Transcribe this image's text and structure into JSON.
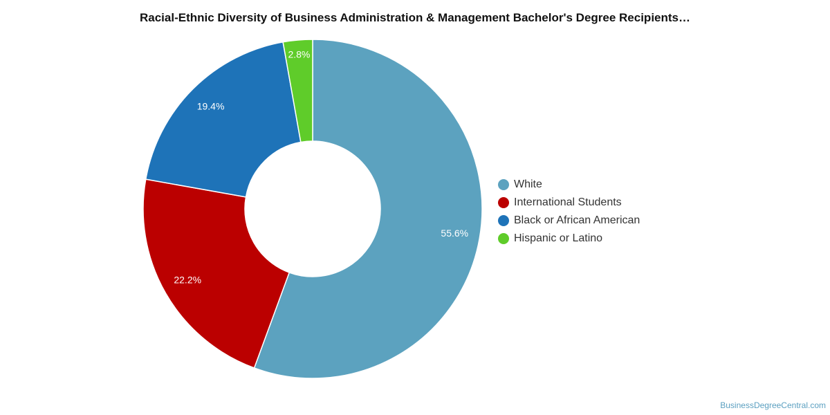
{
  "chart_data": {
    "type": "pie",
    "title": "Racial-Ethnic Diversity of Business Administration & Management Bachelor's Degree Recipients…",
    "categories": [
      "White",
      "International Students",
      "Black or African American",
      "Hispanic or Latino"
    ],
    "values": [
      55.6,
      22.2,
      19.4,
      2.8
    ],
    "value_labels": [
      "55.6%",
      "22.2%",
      "19.4%",
      "2.8%"
    ],
    "colors": [
      "#5ca2bf",
      "#bb0000",
      "#1e73b8",
      "#5fcc2a"
    ],
    "donut": true,
    "legend_position": "right"
  },
  "watermark": "BusinessDegreeCentral.com"
}
